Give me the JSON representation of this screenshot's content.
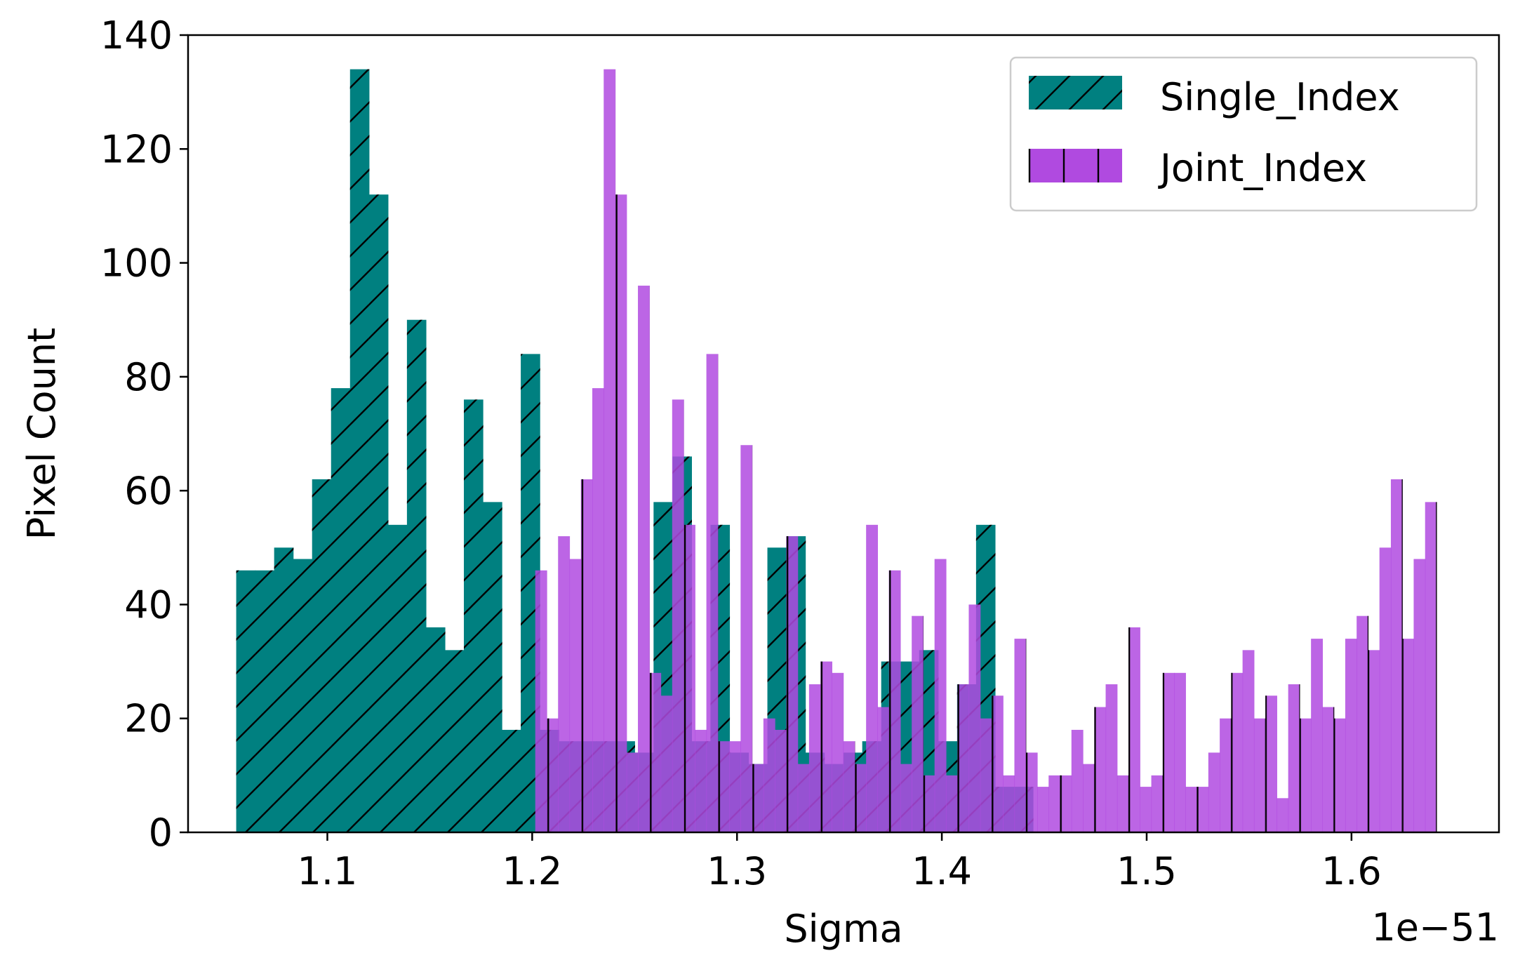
{
  "chart_data": {
    "type": "bar",
    "xlabel": "Sigma",
    "ylabel": "Pixel Count",
    "x_offset_label": "1e−51",
    "xlim": [
      1.032,
      1.672
    ],
    "ylim": [
      0,
      140
    ],
    "xticks": [
      {
        "value": 1.1,
        "label": "1.1"
      },
      {
        "value": 1.2,
        "label": "1.2"
      },
      {
        "value": 1.3,
        "label": "1.3"
      },
      {
        "value": 1.4,
        "label": "1.4"
      },
      {
        "value": 1.5,
        "label": "1.5"
      },
      {
        "value": 1.6,
        "label": "1.6"
      }
    ],
    "yticks": [
      {
        "value": 0,
        "label": "0"
      },
      {
        "value": 20,
        "label": "20"
      },
      {
        "value": 40,
        "label": "40"
      },
      {
        "value": 60,
        "label": "60"
      },
      {
        "value": 80,
        "label": "80"
      },
      {
        "value": 100,
        "label": "100"
      },
      {
        "value": 120,
        "label": "120"
      },
      {
        "value": 140,
        "label": "140"
      }
    ],
    "legend_position": "top-right",
    "series": [
      {
        "name": "Single_Index",
        "color": "#008080",
        "hatch": "diagonal",
        "x_start": 1.0555,
        "x_end": 1.4445,
        "values": [
          46,
          46,
          50,
          48,
          62,
          78,
          134,
          112,
          54,
          90,
          36,
          32,
          76,
          58,
          18,
          84,
          18,
          16,
          16,
          16,
          16,
          14,
          58,
          66,
          16,
          54,
          14,
          12,
          50,
          52,
          14,
          12,
          14,
          16,
          30,
          30,
          32,
          16,
          26,
          54,
          8,
          8
        ]
      },
      {
        "name": "Joint_Index",
        "color": "#b04ae0",
        "hatch": "vertical",
        "alpha": 0.85,
        "x_start": 1.2015,
        "x_end": 1.6415,
        "values": [
          46,
          20,
          52,
          48,
          62,
          78,
          134,
          112,
          14,
          96,
          28,
          24,
          76,
          54,
          18,
          84,
          16,
          16,
          68,
          12,
          20,
          18,
          52,
          12,
          26,
          30,
          28,
          16,
          12,
          54,
          22,
          46,
          12,
          38,
          10,
          48,
          10,
          26,
          40,
          20,
          24,
          10,
          34,
          14,
          8,
          10,
          10,
          18,
          12,
          22,
          26,
          10,
          36,
          8,
          10,
          28,
          28,
          8,
          8,
          14,
          20,
          28,
          32,
          20,
          24,
          6,
          26,
          20,
          34,
          22,
          20,
          34,
          38,
          32,
          50,
          62,
          34,
          48,
          58
        ]
      }
    ]
  }
}
